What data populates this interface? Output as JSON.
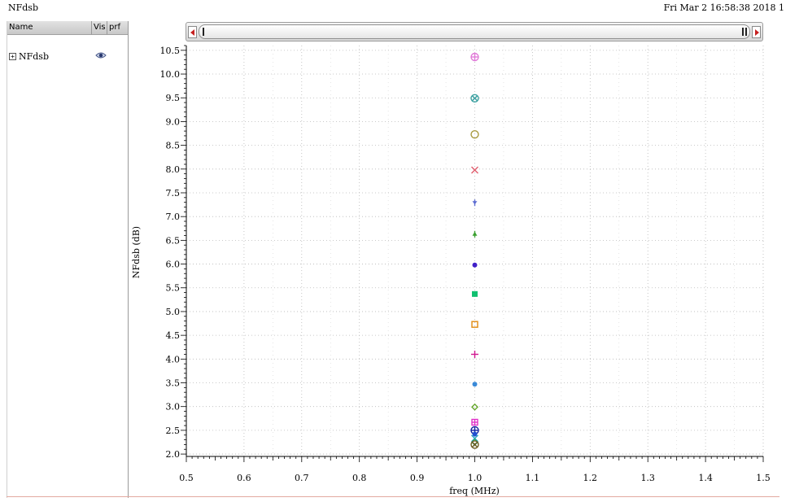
{
  "header": {
    "title": "NFdsb",
    "timestamp": "Fri Mar 2 16:58:38 2018  1"
  },
  "panel": {
    "columns": {
      "name": "Name",
      "vis": "Vis",
      "prf": "prf"
    },
    "tree_item": {
      "label": "NFdsb",
      "expand_symbol": "+"
    }
  },
  "chart_data": {
    "type": "scatter",
    "xlabel": "freq (MHz)",
    "ylabel": "NFdsb (dB)",
    "xlim": [
      0.5,
      1.5
    ],
    "ylim": [
      1.95,
      10.6
    ],
    "grid": true,
    "x_ticks": [
      0.5,
      0.6,
      0.7,
      0.8,
      0.9,
      1.0,
      1.1,
      1.2,
      1.3,
      1.4,
      1.5
    ],
    "x_tick_labels": [
      "0.5",
      "0.6",
      "0.7",
      "0.8",
      "0.9",
      "1.0",
      "1.1",
      "1.2",
      "1.3",
      "1.4",
      "1.5"
    ],
    "y_ticks": [
      2.0,
      2.5,
      3.0,
      3.5,
      4.0,
      4.5,
      5.0,
      5.5,
      6.0,
      6.5,
      7.0,
      7.5,
      8.0,
      8.5,
      9.0,
      9.5,
      10.0,
      10.5
    ],
    "y_tick_labels": [
      "2.0",
      "2.5",
      "3.0",
      "3.5",
      "4.0",
      "4.5",
      "5.0",
      "5.5",
      "6.0",
      "6.5",
      "7.0",
      "7.5",
      "8.0",
      "8.5",
      "9.0",
      "9.5",
      "10.0",
      "10.5"
    ],
    "points": [
      {
        "x": 1.0,
        "y": 10.36,
        "marker": "circle-plus",
        "color": "#e07ad8"
      },
      {
        "x": 1.0,
        "y": 9.49,
        "marker": "circle-x",
        "color": "#3aa0a0"
      },
      {
        "x": 1.0,
        "y": 8.73,
        "marker": "circle-open",
        "color": "#a89a40"
      },
      {
        "x": 1.0,
        "y": 7.98,
        "marker": "x",
        "color": "#e06070"
      },
      {
        "x": 1.0,
        "y": 7.29,
        "marker": "tri-down",
        "color": "#5a6ad0"
      },
      {
        "x": 1.0,
        "y": 6.63,
        "marker": "tri-up",
        "color": "#3aa030"
      },
      {
        "x": 1.0,
        "y": 5.98,
        "marker": "dot",
        "color": "#4020c8"
      },
      {
        "x": 1.0,
        "y": 5.37,
        "marker": "square-filled",
        "color": "#10c070"
      },
      {
        "x": 1.0,
        "y": 4.73,
        "marker": "square-open",
        "color": "#e08a10"
      },
      {
        "x": 1.0,
        "y": 4.1,
        "marker": "plus",
        "color": "#d01890"
      },
      {
        "x": 1.0,
        "y": 3.47,
        "marker": "dot",
        "color": "#3a8ad8"
      },
      {
        "x": 1.0,
        "y": 2.99,
        "marker": "diamond-open",
        "color": "#68a830"
      },
      {
        "x": 1.0,
        "y": 2.67,
        "marker": "square-plus",
        "color": "#e030c8"
      },
      {
        "x": 1.0,
        "y": 2.5,
        "marker": "circle-plus",
        "color": "#1020a0"
      },
      {
        "x": 1.0,
        "y": 2.42,
        "marker": "dot",
        "color": "#2050d0"
      },
      {
        "x": 1.0,
        "y": 2.33,
        "marker": "x",
        "color": "#20a0c0"
      },
      {
        "x": 1.0,
        "y": 2.25,
        "marker": "diamond-open",
        "color": "#30b060"
      },
      {
        "x": 1.0,
        "y": 2.2,
        "marker": "circle-x",
        "color": "#6a5a20"
      }
    ]
  }
}
